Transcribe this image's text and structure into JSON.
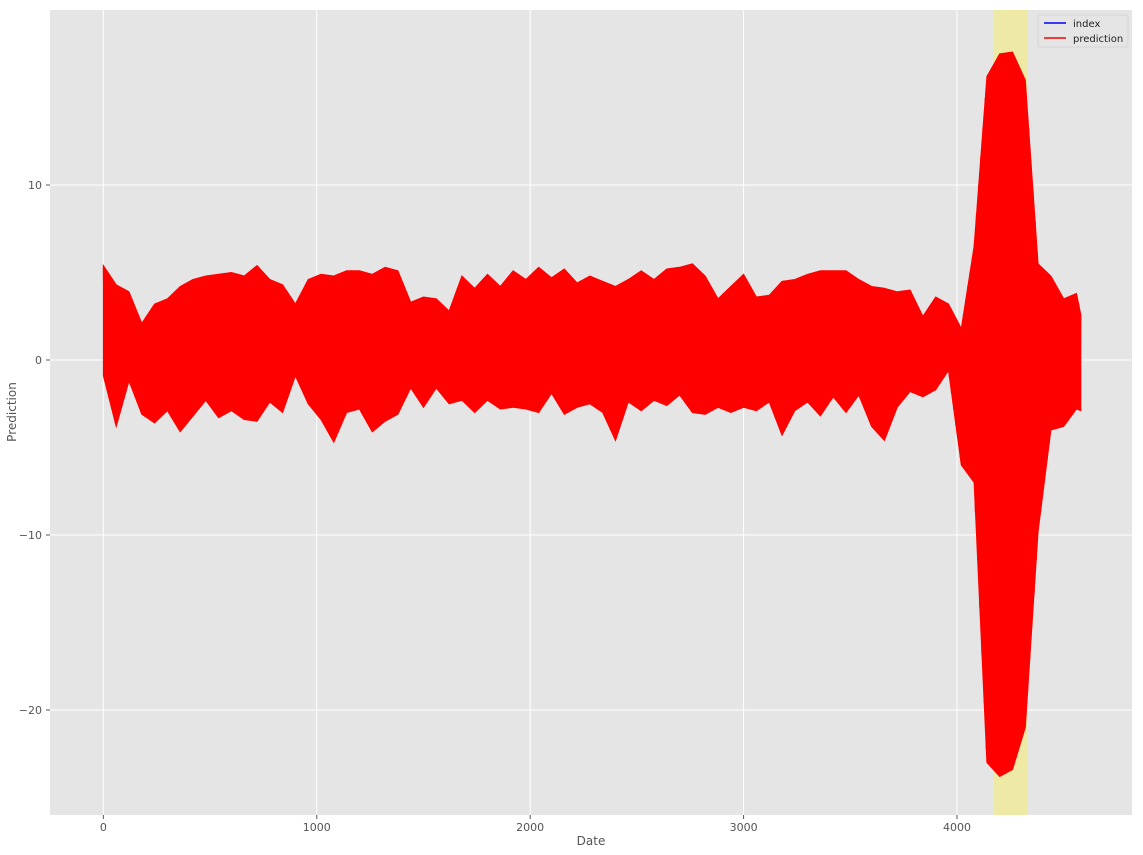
{
  "chart_data": {
    "type": "line",
    "title": "",
    "xlabel": "Date",
    "ylabel": "Prediction",
    "xlim": [
      -250,
      4820
    ],
    "ylim": [
      -26,
      20
    ],
    "xticks": [
      0,
      1000,
      2000,
      3000,
      4000
    ],
    "yticks": [
      -20,
      -10,
      0,
      10
    ],
    "xtick_labels": [
      "0",
      "1000",
      "2000",
      "3000",
      "4000"
    ],
    "ytick_labels": [
      "−20",
      "−10",
      "0",
      "10"
    ],
    "grid": true,
    "legend_position": "top-right",
    "background": "#e5e5e5",
    "highlight_span": {
      "x0": 4170,
      "x1": 4330,
      "color": "#efe9a6"
    },
    "series": [
      {
        "name": "index",
        "color": "#0000ff",
        "note_visible": false,
        "x": [],
        "y": []
      },
      {
        "name": "prediction",
        "color": "#ff0000",
        "x": [
          0,
          60,
          120,
          180,
          240,
          300,
          360,
          420,
          480,
          540,
          600,
          660,
          720,
          780,
          840,
          900,
          960,
          1020,
          1080,
          1140,
          1200,
          1260,
          1320,
          1380,
          1440,
          1500,
          1560,
          1620,
          1680,
          1740,
          1800,
          1860,
          1920,
          1980,
          2040,
          2100,
          2160,
          2220,
          2280,
          2340,
          2400,
          2460,
          2520,
          2580,
          2640,
          2700,
          2760,
          2820,
          2880,
          2940,
          3000,
          3060,
          3120,
          3180,
          3240,
          3300,
          3360,
          3420,
          3480,
          3540,
          3600,
          3660,
          3720,
          3780,
          3840,
          3900,
          3960,
          4020,
          4080,
          4140,
          4200,
          4260,
          4320,
          4380,
          4440,
          4500,
          4560,
          4580
        ],
        "ymax": [
          5.4,
          4.3,
          3.9,
          2.1,
          3.2,
          3.5,
          4.2,
          4.6,
          4.8,
          4.9,
          5.0,
          4.8,
          5.4,
          4.6,
          4.3,
          3.2,
          4.6,
          4.9,
          4.8,
          5.1,
          5.1,
          4.9,
          5.3,
          5.1,
          3.3,
          3.6,
          3.5,
          2.8,
          4.8,
          4.1,
          4.9,
          4.2,
          5.1,
          4.6,
          5.3,
          4.7,
          5.2,
          4.4,
          4.8,
          4.5,
          4.2,
          4.6,
          5.1,
          4.6,
          5.2,
          5.3,
          5.5,
          4.8,
          3.5,
          4.2,
          4.9,
          3.6,
          3.7,
          4.5,
          4.6,
          4.9,
          5.1,
          5.1,
          5.1,
          4.6,
          4.2,
          4.1,
          3.9,
          4.0,
          2.5,
          3.6,
          3.2,
          1.8,
          6.5,
          16.2,
          17.5,
          17.6,
          16.0,
          5.5,
          4.8,
          3.5,
          3.8,
          2.6
        ],
        "ymin": [
          -0.9,
          -3.8,
          -1.2,
          -3.1,
          -3.6,
          -2.9,
          -4.1,
          -3.2,
          -2.3,
          -3.3,
          -2.9,
          -3.4,
          -3.5,
          -2.4,
          -3.0,
          -0.9,
          -2.5,
          -3.4,
          -4.7,
          -3.0,
          -2.8,
          -4.1,
          -3.5,
          -3.1,
          -1.6,
          -2.7,
          -1.6,
          -2.5,
          -2.3,
          -3.0,
          -2.3,
          -2.8,
          -2.7,
          -2.8,
          -3.0,
          -1.9,
          -3.1,
          -2.7,
          -2.5,
          -3.0,
          -4.6,
          -2.4,
          -2.9,
          -2.3,
          -2.6,
          -2.0,
          -3.0,
          -3.1,
          -2.7,
          -3.0,
          -2.7,
          -2.9,
          -2.4,
          -4.3,
          -2.9,
          -2.4,
          -3.2,
          -2.1,
          -3.0,
          -2.0,
          -3.8,
          -4.6,
          -2.7,
          -1.8,
          -2.1,
          -1.7,
          -0.6,
          -6.0,
          -7.0,
          -23.0,
          -23.8,
          -23.4,
          -21.0,
          -9.8,
          -4.0,
          -3.8,
          -2.8,
          -2.9
        ]
      }
    ]
  },
  "legend": {
    "items": [
      {
        "label": "index",
        "color": "#0000ff"
      },
      {
        "label": "prediction",
        "color": "#ff0000"
      }
    ]
  }
}
